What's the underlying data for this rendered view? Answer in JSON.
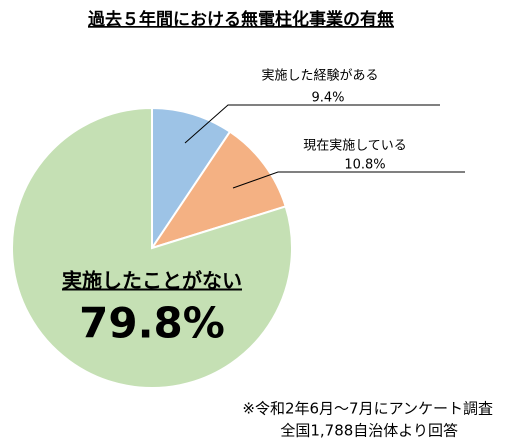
{
  "chart_data": {
    "type": "pie",
    "title": "過去５年間における無電柱化事業の有無",
    "categories": [
      "実施した経験がある",
      "現在実施している",
      "実施したことがない"
    ],
    "values": [
      9.4,
      10.8,
      79.8
    ],
    "value_labels": [
      "9.4%",
      "10.8%",
      "79.8%"
    ],
    "colors": [
      "#9dc3e6",
      "#f4b183",
      "#c5e0b4"
    ],
    "notes": [
      "※令和2年6月～7月にアンケート調査",
      "全国1,788自治体より回答"
    ]
  }
}
